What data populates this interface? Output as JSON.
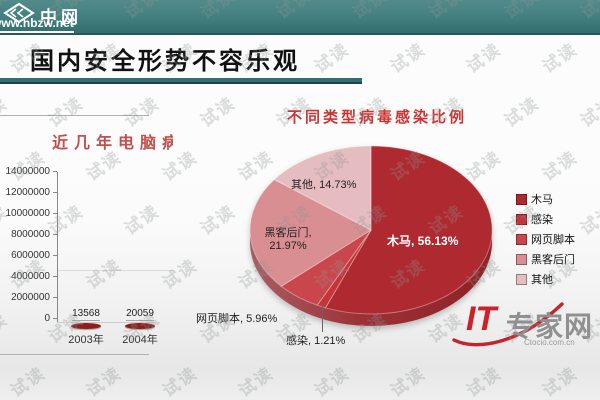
{
  "header": {
    "site_name": "中网",
    "site_url": "www.hbzw.net"
  },
  "slide": {
    "title": "国内安全形势不容乐观"
  },
  "watermark": {
    "text": "试读"
  },
  "footer_logo": {
    "brand_it": "IT",
    "brand_rest": "专家网",
    "domain": "Ctocio.com.cn"
  },
  "chart_data": [
    {
      "type": "bar",
      "title": "近几年电脑病",
      "categories": [
        "2003年",
        "2004年"
      ],
      "values": [
        13568,
        20059
      ],
      "value_labels": [
        "13568",
        "20059"
      ],
      "y_tick_labels": [
        "0",
        "2000000",
        "4000000",
        "6000000",
        "8000000",
        "10000000",
        "12000000",
        "14000000"
      ],
      "ylim": [
        0,
        14000000
      ],
      "bar_color": "#8f1d1d",
      "title_color": "#c0504d",
      "legend_position": "none",
      "grid": "faint"
    },
    {
      "type": "pie",
      "title": "不同类型病毒感染比例",
      "slices": [
        {
          "label": "木马",
          "value": 56.13,
          "display": "木马, 56.13%",
          "color": "#ae2a30"
        },
        {
          "label": "感染",
          "value": 1.21,
          "display": "感染, 1.21%",
          "color": "#c4353a"
        },
        {
          "label": "网页脚本",
          "value": 5.96,
          "display": "网页脚本, 5.96%",
          "color": "#c9474c"
        },
        {
          "label": "黑客后门",
          "value": 21.97,
          "display": "黑客后门, 21.97%",
          "color": "#d98e92"
        },
        {
          "label": "其他",
          "value": 14.73,
          "display": "其他, 14.73%",
          "color": "#e5bdc0"
        }
      ],
      "labels": {
        "muma": "木马, 56.13%",
        "ganran": "感染, 1.21%",
        "wangye": "网页脚本, 5.96%",
        "heike_line1": "黑客后门,",
        "heike_line2": "21.97%",
        "qita": "其他, 14.73%"
      },
      "legend": [
        "木马",
        "感染",
        "网页脚本",
        "黑客后门",
        "其他"
      ],
      "legend_position": "right",
      "start_angle_deg": 0,
      "direction": "clockwise",
      "style": "3d"
    }
  ],
  "colors": {
    "header_teal": "#417d7d",
    "title_underline": "#2f7070",
    "pie_title_red": "#cc3333",
    "bar_title_red": "#c0504d",
    "logo_red": "#cf2027",
    "rim_dark": "#8d2126",
    "rim_light": "#a85e62"
  }
}
